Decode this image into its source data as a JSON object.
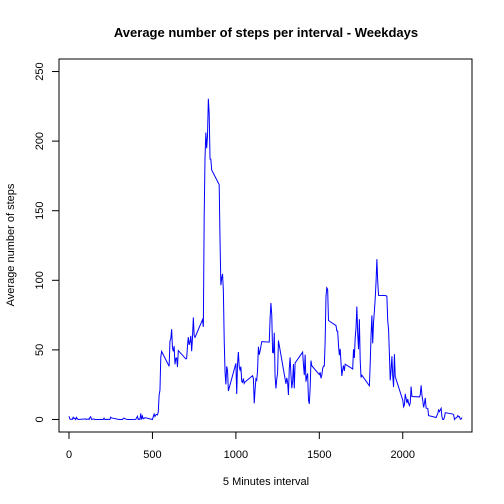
{
  "chart_data": {
    "type": "line",
    "title": "Average number of steps per interval - Weekdays",
    "xlabel": "5 Minutes interval",
    "ylabel": "Average number of steps",
    "xlim": [
      -60,
      2415
    ],
    "ylim": [
      -9,
      259
    ],
    "x_ticks": [
      0,
      500,
      1000,
      1500,
      2000
    ],
    "y_ticks": [
      0,
      50,
      100,
      150,
      200,
      250
    ],
    "line_color": "#0000ff",
    "grid": false,
    "legend": "none",
    "series": [
      {
        "values": [
          [
            0,
            2.3
          ],
          [
            5,
            0.4
          ],
          [
            10,
            0.2
          ],
          [
            15,
            0.2
          ],
          [
            20,
            0.1
          ],
          [
            25,
            1.6
          ],
          [
            30,
            0.6
          ],
          [
            35,
            1.0
          ],
          [
            40,
            0
          ],
          [
            45,
            1.5
          ],
          [
            50,
            0.4
          ],
          [
            55,
            0
          ],
          [
            100,
            0.4
          ],
          [
            105,
            0
          ],
          [
            110,
            0.2
          ],
          [
            115,
            0.4
          ],
          [
            120,
            0
          ],
          [
            125,
            1.4
          ],
          [
            130,
            2.0
          ],
          [
            135,
            0
          ],
          [
            140,
            0.2
          ],
          [
            145,
            0.3
          ],
          [
            150,
            0.3
          ],
          [
            155,
            0
          ],
          [
            200,
            0
          ],
          [
            205,
            0
          ],
          [
            210,
            1.0
          ],
          [
            215,
            0
          ],
          [
            220,
            0
          ],
          [
            225,
            0.1
          ],
          [
            230,
            0
          ],
          [
            235,
            0.2
          ],
          [
            240,
            0
          ],
          [
            245,
            0
          ],
          [
            250,
            1.7
          ],
          [
            255,
            1.1
          ],
          [
            300,
            0
          ],
          [
            305,
            0
          ],
          [
            310,
            0
          ],
          [
            315,
            0
          ],
          [
            320,
            0
          ],
          [
            325,
            0.7
          ],
          [
            330,
            1.0
          ],
          [
            335,
            0.5
          ],
          [
            340,
            0.4
          ],
          [
            345,
            0.1
          ],
          [
            350,
            0
          ],
          [
            355,
            0
          ],
          [
            400,
            0.1
          ],
          [
            405,
            1.1
          ],
          [
            410,
            2.3
          ],
          [
            415,
            0
          ],
          [
            420,
            0.4
          ],
          [
            425,
            0
          ],
          [
            430,
            4.3
          ],
          [
            435,
            0
          ],
          [
            440,
            2.4
          ],
          [
            445,
            0.5
          ],
          [
            450,
            0.7
          ],
          [
            455,
            1.3
          ],
          [
            500,
            0
          ],
          [
            505,
            2.0
          ],
          [
            510,
            3.9
          ],
          [
            515,
            2.1
          ],
          [
            520,
            3.3
          ],
          [
            525,
            3.6
          ],
          [
            530,
            3.3
          ],
          [
            535,
            5.4
          ],
          [
            540,
            17.6
          ],
          [
            545,
            20.9
          ],
          [
            550,
            44.7
          ],
          [
            555,
            48.9
          ],
          [
            600,
            38.2
          ],
          [
            605,
            56.5
          ],
          [
            610,
            57.9
          ],
          [
            615,
            64.9
          ],
          [
            620,
            51.5
          ],
          [
            625,
            48.9
          ],
          [
            630,
            52.7
          ],
          [
            635,
            39.6
          ],
          [
            640,
            44.0
          ],
          [
            645,
            44.2
          ],
          [
            650,
            37.6
          ],
          [
            655,
            49.5
          ],
          [
            700,
            43.5
          ],
          [
            705,
            43.8
          ],
          [
            710,
            52.8
          ],
          [
            715,
            59.1
          ],
          [
            720,
            53.6
          ],
          [
            725,
            55.7
          ],
          [
            730,
            60.1
          ],
          [
            735,
            49.0
          ],
          [
            740,
            58.7
          ],
          [
            745,
            73.3
          ],
          [
            750,
            60.4
          ],
          [
            755,
            59.0
          ],
          [
            800,
            71.7
          ],
          [
            805,
            66.5
          ],
          [
            810,
            145.9
          ],
          [
            815,
            187.5
          ],
          [
            820,
            206.2
          ],
          [
            825,
            194.9
          ],
          [
            830,
            203.9
          ],
          [
            835,
            230.4
          ],
          [
            840,
            219.9
          ],
          [
            845,
            187.1
          ],
          [
            850,
            187.0
          ],
          [
            855,
            179.3
          ],
          [
            900,
            168.7
          ],
          [
            905,
            128.5
          ],
          [
            910,
            96.5
          ],
          [
            915,
            101.5
          ],
          [
            920,
            104.6
          ],
          [
            925,
            92.7
          ],
          [
            930,
            57.1
          ],
          [
            935,
            34.2
          ],
          [
            940,
            25.2
          ],
          [
            945,
            38.2
          ],
          [
            950,
            35.0
          ],
          [
            955,
            20.5
          ],
          [
            1000,
            40.3
          ],
          [
            1005,
            18.3
          ],
          [
            1010,
            40.1
          ],
          [
            1015,
            48.5
          ],
          [
            1020,
            37.8
          ],
          [
            1025,
            35.6
          ],
          [
            1030,
            38.0
          ],
          [
            1035,
            27.3
          ],
          [
            1040,
            26.6
          ],
          [
            1045,
            29.5
          ],
          [
            1050,
            25.9
          ],
          [
            1055,
            27.0
          ],
          [
            1100,
            31.4
          ],
          [
            1105,
            29.4
          ],
          [
            1110,
            11.6
          ],
          [
            1115,
            21.5
          ],
          [
            1120,
            29.2
          ],
          [
            1125,
            28.2
          ],
          [
            1130,
            35.4
          ],
          [
            1135,
            52.2
          ],
          [
            1140,
            46.5
          ],
          [
            1145,
            49.2
          ],
          [
            1150,
            52.5
          ],
          [
            1155,
            55.9
          ],
          [
            1200,
            55.6
          ],
          [
            1205,
            72.6
          ],
          [
            1210,
            83.7
          ],
          [
            1215,
            75.0
          ],
          [
            1220,
            48.2
          ],
          [
            1225,
            47.9
          ],
          [
            1230,
            62.3
          ],
          [
            1235,
            30.8
          ],
          [
            1240,
            22.3
          ],
          [
            1245,
            29.0
          ],
          [
            1250,
            33.5
          ],
          [
            1255,
            56.7
          ],
          [
            1300,
            25.6
          ],
          [
            1305,
            29.9
          ],
          [
            1310,
            26.7
          ],
          [
            1315,
            17.6
          ],
          [
            1320,
            36.4
          ],
          [
            1325,
            44.6
          ],
          [
            1330,
            32.2
          ],
          [
            1335,
            22.5
          ],
          [
            1340,
            27.4
          ],
          [
            1345,
            39.8
          ],
          [
            1350,
            22.4
          ],
          [
            1355,
            40.6
          ],
          [
            1400,
            48.4
          ],
          [
            1405,
            39.2
          ],
          [
            1410,
            31.9
          ],
          [
            1415,
            46.6
          ],
          [
            1420,
            27.2
          ],
          [
            1425,
            30.8
          ],
          [
            1430,
            33.1
          ],
          [
            1435,
            14.1
          ],
          [
            1440,
            11.2
          ],
          [
            1445,
            22.4
          ],
          [
            1450,
            42.3
          ],
          [
            1455,
            38.6
          ],
          [
            1500,
            32.2
          ],
          [
            1505,
            33.9
          ],
          [
            1510,
            29.6
          ],
          [
            1515,
            31.9
          ],
          [
            1520,
            36.6
          ],
          [
            1525,
            38.4
          ],
          [
            1530,
            38.4
          ],
          [
            1535,
            56.4
          ],
          [
            1540,
            88.4
          ],
          [
            1545,
            94.6
          ],
          [
            1550,
            93.4
          ],
          [
            1555,
            71.1
          ],
          [
            1600,
            67.5
          ],
          [
            1605,
            63.6
          ],
          [
            1610,
            63.6
          ],
          [
            1615,
            53.3
          ],
          [
            1620,
            46.2
          ],
          [
            1625,
            50.7
          ],
          [
            1630,
            40.9
          ],
          [
            1635,
            31.3
          ],
          [
            1640,
            35.7
          ],
          [
            1645,
            38.8
          ],
          [
            1650,
            34.9
          ],
          [
            1655,
            39.7
          ],
          [
            1700,
            36.3
          ],
          [
            1705,
            50.4
          ],
          [
            1710,
            44.2
          ],
          [
            1715,
            58.6
          ],
          [
            1720,
            66.0
          ],
          [
            1725,
            81.2
          ],
          [
            1730,
            61.4
          ],
          [
            1735,
            50.5
          ],
          [
            1740,
            72.0
          ],
          [
            1745,
            42.6
          ],
          [
            1750,
            30.2
          ],
          [
            1755,
            31.8
          ],
          [
            1800,
            24.2
          ],
          [
            1805,
            40.1
          ],
          [
            1810,
            60.1
          ],
          [
            1815,
            74.8
          ],
          [
            1820,
            54.7
          ],
          [
            1825,
            69.9
          ],
          [
            1830,
            77.8
          ],
          [
            1835,
            86.9
          ],
          [
            1840,
            99.0
          ],
          [
            1845,
            115.2
          ],
          [
            1850,
            99.2
          ],
          [
            1855,
            89.2
          ],
          [
            1900,
            89.0
          ],
          [
            1905,
            88.3
          ],
          [
            1910,
            70.8
          ],
          [
            1915,
            64.8
          ],
          [
            1920,
            47.1
          ],
          [
            1925,
            28.1
          ],
          [
            1930,
            35.4
          ],
          [
            1935,
            45.4
          ],
          [
            1940,
            31.3
          ],
          [
            1945,
            23.4
          ],
          [
            1950,
            46.9
          ],
          [
            1955,
            30.8
          ],
          [
            2000,
            13.9
          ],
          [
            2005,
            9.1
          ],
          [
            2010,
            10.4
          ],
          [
            2015,
            18.4
          ],
          [
            2020,
            15.1
          ],
          [
            2025,
            11.7
          ],
          [
            2030,
            14.7
          ],
          [
            2035,
            11.6
          ],
          [
            2040,
            10.0
          ],
          [
            2045,
            11.8
          ],
          [
            2050,
            23.7
          ],
          [
            2055,
            16.5
          ],
          [
            2100,
            16.2
          ],
          [
            2105,
            17.7
          ],
          [
            2110,
            24.6
          ],
          [
            2115,
            17.5
          ],
          [
            2120,
            13.6
          ],
          [
            2125,
            8.7
          ],
          [
            2130,
            11.6
          ],
          [
            2135,
            15.5
          ],
          [
            2140,
            8.2
          ],
          [
            2145,
            8.1
          ],
          [
            2150,
            7.9
          ],
          [
            2155,
            2.8
          ],
          [
            2200,
            1.4
          ],
          [
            2205,
            2.9
          ],
          [
            2210,
            4.3
          ],
          [
            2215,
            6.8
          ],
          [
            2220,
            5.7
          ],
          [
            2225,
            6.9
          ],
          [
            2230,
            8.0
          ],
          [
            2235,
            1.8
          ],
          [
            2240,
            0
          ],
          [
            2245,
            0
          ],
          [
            2250,
            1.6
          ],
          [
            2255,
            4.9
          ],
          [
            2300,
            3.9
          ],
          [
            2305,
            3.4
          ],
          [
            2310,
            0
          ],
          [
            2315,
            0.9
          ],
          [
            2320,
            1.1
          ],
          [
            2325,
            1.6
          ],
          [
            2330,
            2.8
          ],
          [
            2335,
            1.9
          ],
          [
            2340,
            2.0
          ],
          [
            2345,
            0.2
          ],
          [
            2350,
            0.3
          ],
          [
            2355,
            1.4
          ]
        ]
      }
    ]
  }
}
